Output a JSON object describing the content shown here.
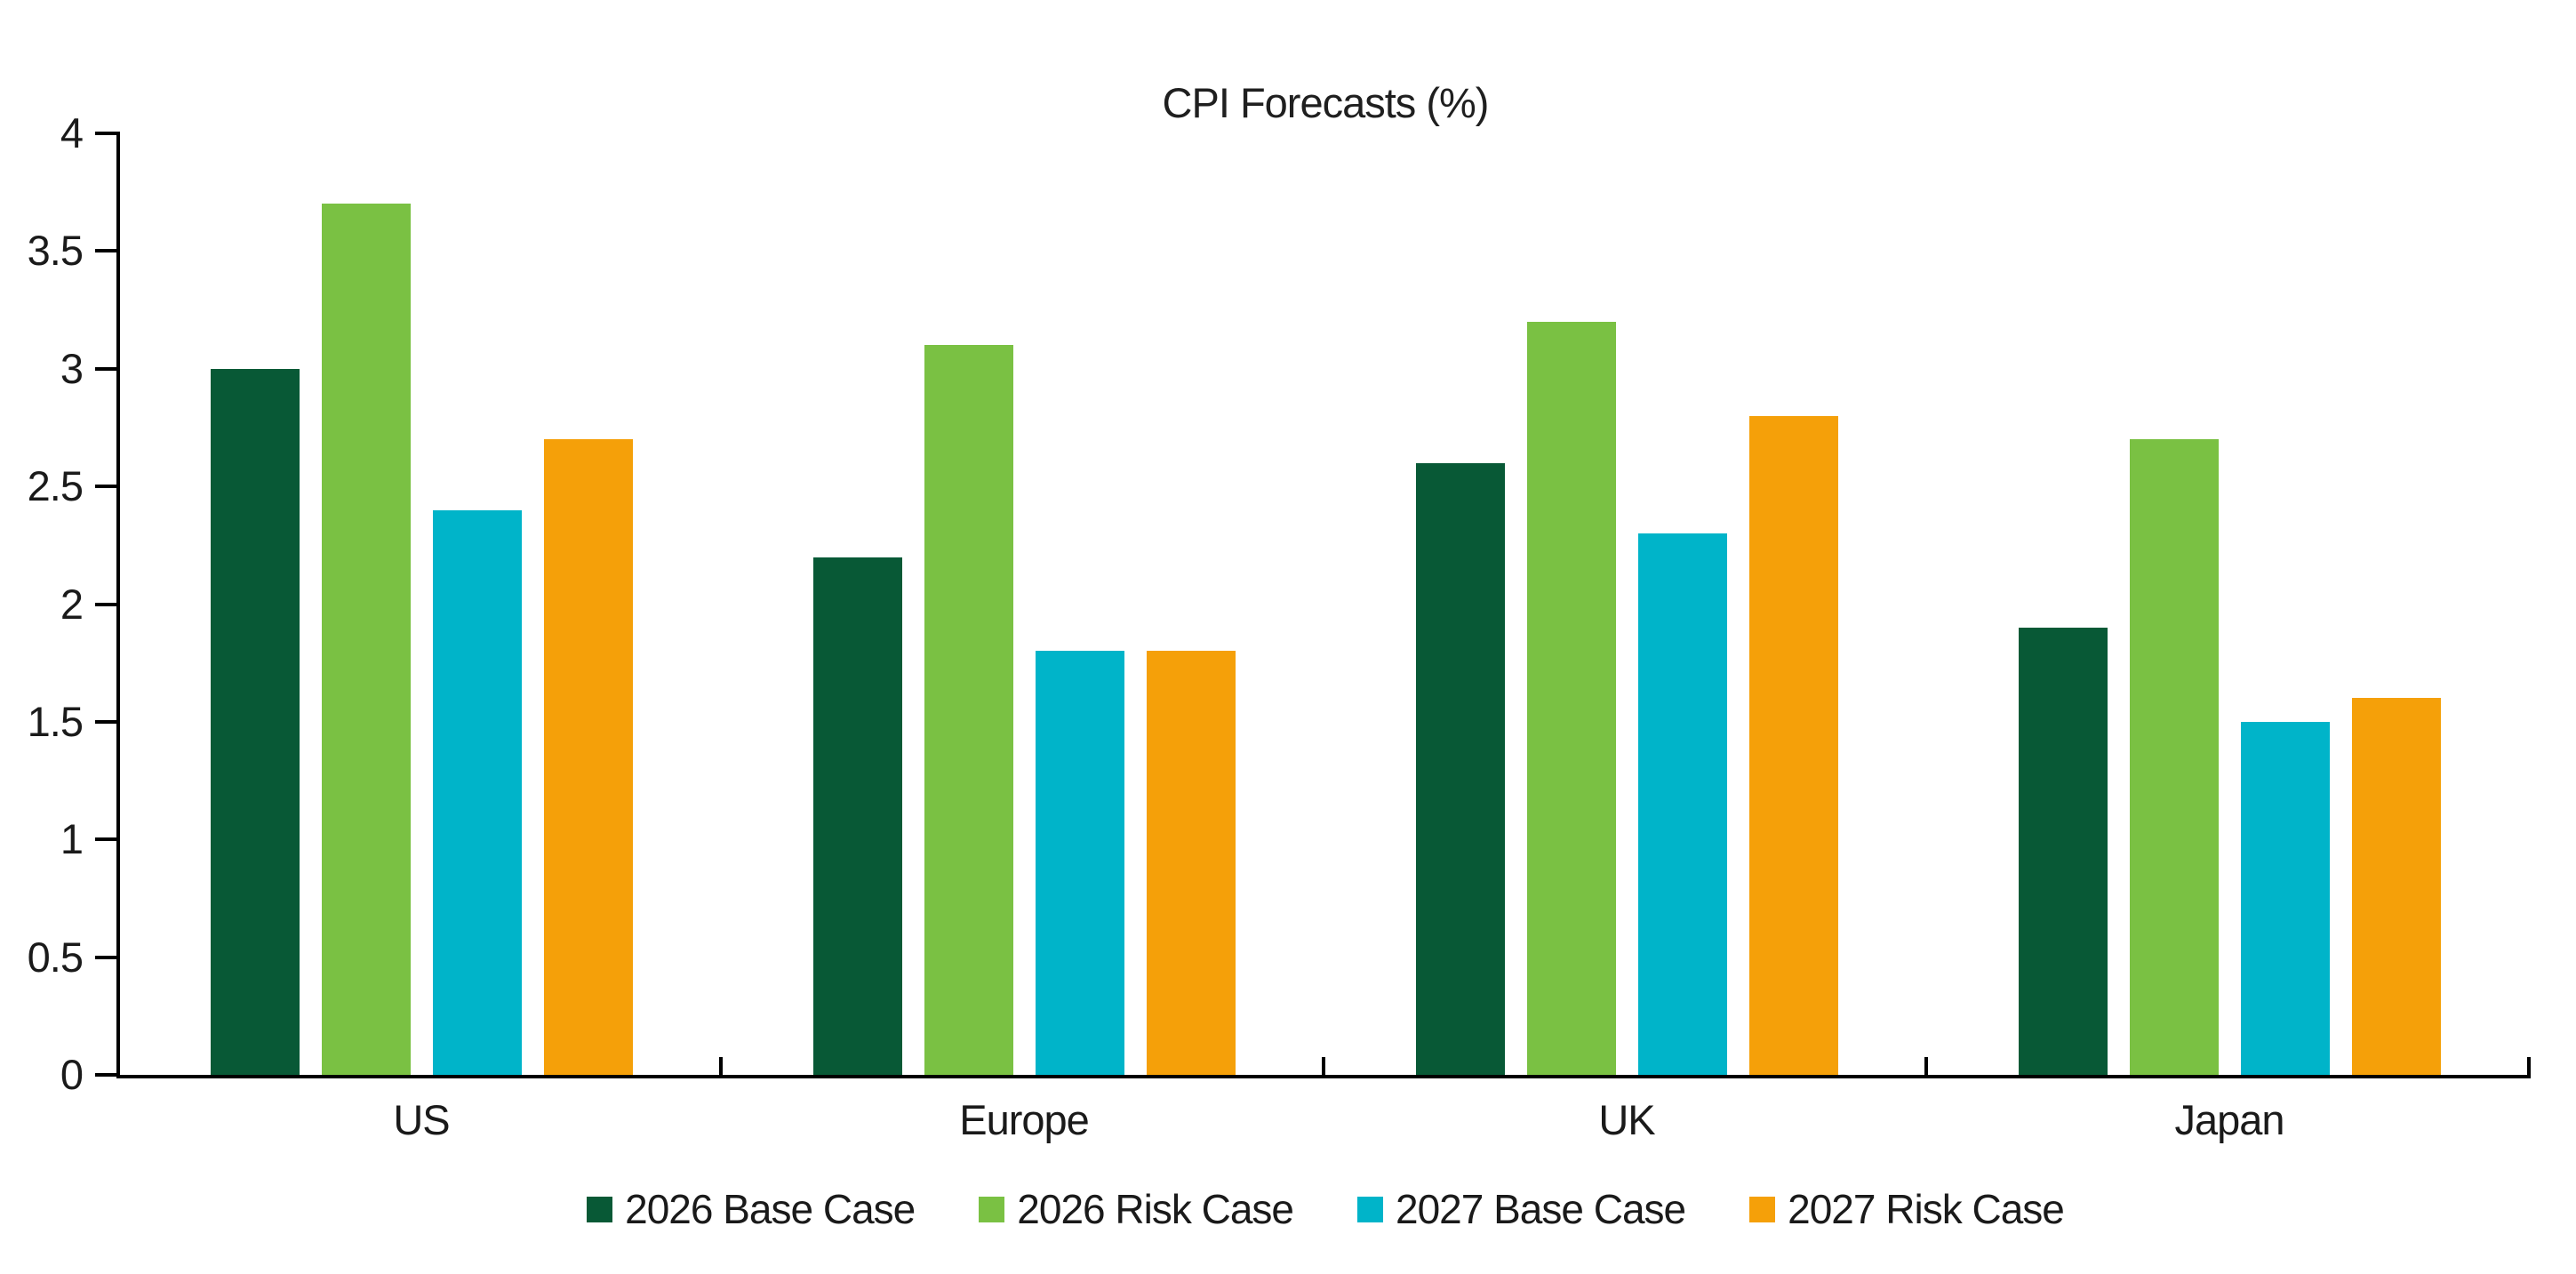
{
  "title": "CPI Forecasts (%)",
  "chart_data": {
    "type": "bar",
    "title": "CPI Forecasts (%)",
    "categories": [
      "US",
      "Europe",
      "UK",
      "Japan"
    ],
    "series": [
      {
        "name": "2026 Base Case",
        "color": "#085936",
        "values": [
          3.0,
          2.2,
          2.6,
          1.9
        ]
      },
      {
        "name": "2026 Risk Case",
        "color": "#7ac143",
        "values": [
          3.7,
          3.1,
          3.2,
          2.7
        ]
      },
      {
        "name": "2027 Base Case",
        "color": "#00b4c9",
        "values": [
          2.4,
          1.8,
          2.3,
          1.5
        ]
      },
      {
        "name": "2027 Risk Case",
        "color": "#f5a009",
        "values": [
          2.7,
          1.8,
          2.8,
          1.6
        ]
      }
    ],
    "xlabel": "",
    "ylabel": "",
    "ylim": [
      0,
      4
    ],
    "y_ticks": [
      "0",
      "0.5",
      "1",
      "1.5",
      "2",
      "2.5",
      "3",
      "3.5",
      "4"
    ],
    "grid": "off",
    "legend_position": "bottom",
    "axis_color": "#000000",
    "background_color": "#ffffff"
  }
}
